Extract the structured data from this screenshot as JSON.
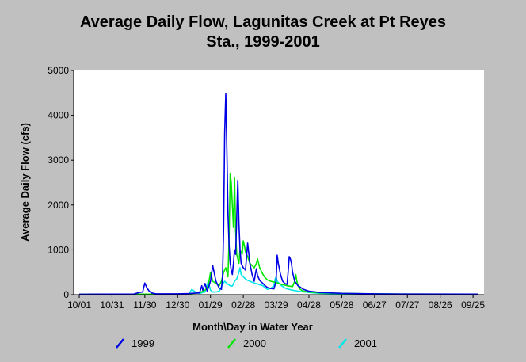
{
  "chart_data": {
    "type": "line",
    "title_lines": [
      "Average Daily Flow, Lagunitas Creek at Pt Reyes",
      "Sta., 1999-2001"
    ],
    "xlabel": "Month\\Day in Water Year",
    "ylabel": "Average Daily Flow (cfs)",
    "x_ticks": [
      "10/01",
      "10/31",
      "11/30",
      "12/30",
      "01/29",
      "02/28",
      "03/29",
      "04/28",
      "05/28",
      "06/27",
      "07/27",
      "08/26",
      "09/25"
    ],
    "x_tick_days": [
      0,
      30,
      60,
      90,
      120,
      150,
      180,
      210,
      240,
      270,
      300,
      330,
      360
    ],
    "xlim": [
      0,
      365
    ],
    "ylim": [
      0,
      5000
    ],
    "y_ticks": [
      0,
      1000,
      2000,
      3000,
      4000,
      5000
    ],
    "grid": false,
    "legend_position": "bottom",
    "series": [
      {
        "name": "1999",
        "color": "#0000e6",
        "points": [
          [
            0,
            10
          ],
          [
            50,
            15
          ],
          [
            55,
            50
          ],
          [
            58,
            60
          ],
          [
            60,
            260
          ],
          [
            62,
            150
          ],
          [
            64,
            80
          ],
          [
            66,
            40
          ],
          [
            70,
            20
          ],
          [
            90,
            20
          ],
          [
            100,
            25
          ],
          [
            110,
            40
          ],
          [
            112,
            200
          ],
          [
            113,
            100
          ],
          [
            115,
            250
          ],
          [
            117,
            80
          ],
          [
            120,
            300
          ],
          [
            122,
            650
          ],
          [
            125,
            300
          ],
          [
            128,
            150
          ],
          [
            130,
            120
          ],
          [
            131,
            400
          ],
          [
            132,
            1500
          ],
          [
            133,
            3600
          ],
          [
            134,
            4480
          ],
          [
            135,
            3200
          ],
          [
            136,
            1800
          ],
          [
            137,
            1100
          ],
          [
            138,
            700
          ],
          [
            139,
            550
          ],
          [
            140,
            450
          ],
          [
            141,
            700
          ],
          [
            142,
            1000
          ],
          [
            143,
            900
          ],
          [
            145,
            2550
          ],
          [
            146,
            1600
          ],
          [
            147,
            1000
          ],
          [
            148,
            700
          ],
          [
            150,
            600
          ],
          [
            152,
            550
          ],
          [
            154,
            1150
          ],
          [
            156,
            700
          ],
          [
            158,
            450
          ],
          [
            160,
            300
          ],
          [
            161,
            450
          ],
          [
            162,
            580
          ],
          [
            163,
            430
          ],
          [
            165,
            320
          ],
          [
            168,
            250
          ],
          [
            170,
            200
          ],
          [
            172,
            160
          ],
          [
            175,
            140
          ],
          [
            178,
            130
          ],
          [
            180,
            300
          ],
          [
            181,
            880
          ],
          [
            182,
            700
          ],
          [
            184,
            450
          ],
          [
            186,
            300
          ],
          [
            188,
            250
          ],
          [
            190,
            230
          ],
          [
            191,
            500
          ],
          [
            192,
            850
          ],
          [
            193,
            800
          ],
          [
            194,
            700
          ],
          [
            195,
            500
          ],
          [
            197,
            300
          ],
          [
            200,
            200
          ],
          [
            205,
            120
          ],
          [
            210,
            80
          ],
          [
            220,
            50
          ],
          [
            240,
            30
          ],
          [
            270,
            20
          ],
          [
            300,
            15
          ],
          [
            365,
            12
          ]
        ]
      },
      {
        "name": "2000",
        "color": "#00e600",
        "points": [
          [
            0,
            10
          ],
          [
            80,
            12
          ],
          [
            100,
            20
          ],
          [
            110,
            40
          ],
          [
            115,
            100
          ],
          [
            118,
            200
          ],
          [
            120,
            500
          ],
          [
            122,
            300
          ],
          [
            125,
            250
          ],
          [
            128,
            200
          ],
          [
            130,
            300
          ],
          [
            132,
            500
          ],
          [
            134,
            600
          ],
          [
            136,
            400
          ],
          [
            137,
            1300
          ],
          [
            138,
            2700
          ],
          [
            139,
            2500
          ],
          [
            140,
            2000
          ],
          [
            141,
            1500
          ],
          [
            142,
            2600
          ],
          [
            143,
            1400
          ],
          [
            144,
            900
          ],
          [
            146,
            700
          ],
          [
            147,
            1000
          ],
          [
            149,
            900
          ],
          [
            150,
            1200
          ],
          [
            151,
            1100
          ],
          [
            152,
            950
          ],
          [
            154,
            850
          ],
          [
            156,
            700
          ],
          [
            158,
            650
          ],
          [
            160,
            600
          ],
          [
            162,
            700
          ],
          [
            163,
            800
          ],
          [
            164,
            700
          ],
          [
            165,
            600
          ],
          [
            168,
            450
          ],
          [
            170,
            380
          ],
          [
            172,
            330
          ],
          [
            175,
            300
          ],
          [
            180,
            270
          ],
          [
            185,
            230
          ],
          [
            190,
            200
          ],
          [
            195,
            180
          ],
          [
            197,
            300
          ],
          [
            198,
            450
          ],
          [
            199,
            300
          ],
          [
            200,
            200
          ],
          [
            202,
            120
          ],
          [
            205,
            80
          ],
          [
            210,
            60
          ],
          [
            220,
            40
          ],
          [
            240,
            30
          ],
          [
            270,
            20
          ],
          [
            300,
            15
          ],
          [
            365,
            12
          ]
        ]
      },
      {
        "name": "2001",
        "color": "#00e6e6",
        "points": [
          [
            0,
            8
          ],
          [
            80,
            8
          ],
          [
            95,
            10
          ],
          [
            100,
            15
          ],
          [
            103,
            120
          ],
          [
            105,
            80
          ],
          [
            108,
            40
          ],
          [
            110,
            30
          ],
          [
            115,
            60
          ],
          [
            118,
            300
          ],
          [
            120,
            100
          ],
          [
            122,
            60
          ],
          [
            125,
            60
          ],
          [
            128,
            80
          ],
          [
            130,
            180
          ],
          [
            133,
            300
          ],
          [
            135,
            250
          ],
          [
            138,
            200
          ],
          [
            140,
            190
          ],
          [
            142,
            300
          ],
          [
            144,
            350
          ],
          [
            146,
            500
          ],
          [
            147,
            600
          ],
          [
            148,
            450
          ],
          [
            150,
            400
          ],
          [
            152,
            350
          ],
          [
            154,
            320
          ],
          [
            156,
            300
          ],
          [
            158,
            280
          ],
          [
            160,
            260
          ],
          [
            163,
            240
          ],
          [
            165,
            220
          ],
          [
            168,
            200
          ],
          [
            170,
            150
          ],
          [
            172,
            120
          ],
          [
            175,
            140
          ],
          [
            178,
            200
          ],
          [
            179,
            340
          ],
          [
            180,
            400
          ],
          [
            181,
            300
          ],
          [
            183,
            250
          ],
          [
            185,
            200
          ],
          [
            188,
            150
          ],
          [
            190,
            130
          ],
          [
            195,
            100
          ],
          [
            200,
            80
          ],
          [
            210,
            50
          ],
          [
            220,
            30
          ],
          [
            240,
            20
          ],
          [
            270,
            12
          ],
          [
            300,
            10
          ],
          [
            365,
            8
          ]
        ]
      }
    ]
  }
}
